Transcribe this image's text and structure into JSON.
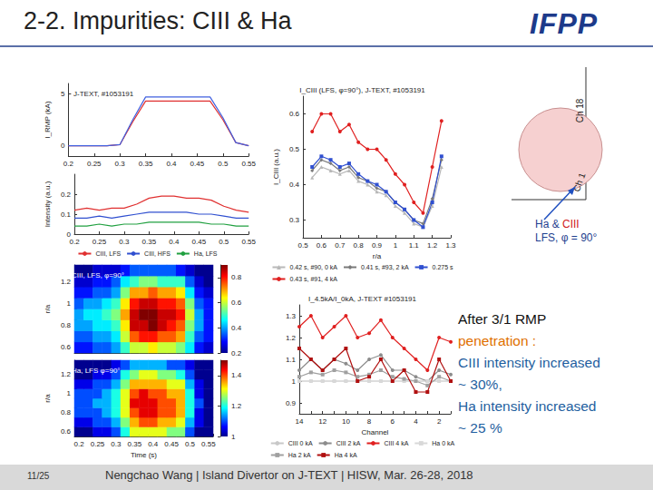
{
  "slide": {
    "title": "2-2. Impurities: CIII & Ha",
    "logo": "IFPP",
    "page": "11/25",
    "footer": "Nengchao Wang | Island Divertor on J-TEXT | HISW, Mar. 26-28, 2018",
    "diagram_labels": [
      "Ch 18",
      "Ch 1"
    ],
    "annotation": [
      [
        {
          "text": "Ha & ",
          "color": "#1f3f8f"
        },
        {
          "text": "CIII",
          "color": "#d02020"
        }
      ],
      [
        {
          "text": "LFS, φ = 90°",
          "color": "#1f3f8f"
        }
      ]
    ],
    "notes": [
      [
        {
          "text": "After 3/1 RMP",
          "color": "#111111"
        }
      ],
      [
        {
          "text": "penetration :",
          "color": "#e07000"
        }
      ],
      [
        {
          "text": "CIII intensity increased",
          "color": "#1f5fa0"
        }
      ],
      [
        {
          "text": "~ 30%,",
          "color": "#1f5fa0"
        }
      ],
      [
        {
          "text": "Ha intensity increased",
          "color": "#1f5fa0"
        }
      ],
      [
        {
          "text": "~ 25 %",
          "color": "#1f5fa0"
        }
      ]
    ]
  },
  "chart_data": [
    {
      "type": "line",
      "title": "J-TEXT, #1053191",
      "y_label": "I_RMP (kA)",
      "marker": "none",
      "grid": false,
      "x": [
        0.2,
        0.225,
        0.25,
        0.275,
        0.3,
        0.325,
        0.35,
        0.375,
        0.4,
        0.425,
        0.45,
        0.475,
        0.5,
        0.525,
        0.55
      ],
      "xlim": [
        0.2,
        0.55
      ],
      "xticks": [
        0.2,
        0.25,
        0.3,
        0.35,
        0.4,
        0.45,
        0.5,
        0.55
      ],
      "ylim": [
        -1,
        6
      ],
      "yticks": [
        0,
        5
      ],
      "series": [
        {
          "color": "#e03030",
          "values": [
            0,
            0,
            0,
            0,
            0.1,
            2.3,
            4.3,
            4.3,
            4.3,
            4.3,
            4.3,
            4.3,
            2.5,
            0.3,
            0
          ]
        },
        {
          "color": "#4060e0",
          "values": [
            0,
            0,
            0,
            0,
            0.1,
            2.5,
            4.7,
            4.7,
            4.7,
            4.7,
            4.7,
            4.7,
            2.7,
            0.3,
            0
          ]
        }
      ]
    },
    {
      "type": "line",
      "y_label": "Intensity (a.u.)",
      "marker": "none",
      "grid": false,
      "legend": "bottom",
      "x": [
        0.2,
        0.225,
        0.25,
        0.275,
        0.3,
        0.325,
        0.35,
        0.375,
        0.4,
        0.425,
        0.45,
        0.475,
        0.5,
        0.525,
        0.55
      ],
      "xlim": [
        0.2,
        0.55
      ],
      "xticks": [
        0.2,
        0.25,
        0.3,
        0.35,
        0.4,
        0.45,
        0.5,
        0.55
      ],
      "ylim": [
        0,
        0.3
      ],
      "yticks": [
        0,
        0.1,
        0.2
      ],
      "series": [
        {
          "name": "CIII, LFS",
          "color": "#e03030",
          "values": [
            0.12,
            0.13,
            0.12,
            0.13,
            0.13,
            0.15,
            0.18,
            0.19,
            0.19,
            0.18,
            0.18,
            0.17,
            0.14,
            0.12,
            0.11
          ]
        },
        {
          "name": "CIII, HFS",
          "color": "#3050d0",
          "values": [
            0.08,
            0.08,
            0.09,
            0.08,
            0.09,
            0.1,
            0.11,
            0.11,
            0.11,
            0.11,
            0.1,
            0.1,
            0.09,
            0.08,
            0.08
          ]
        },
        {
          "name": "Ha, LFS",
          "color": "#20a040",
          "values": [
            0.04,
            0.04,
            0.05,
            0.04,
            0.05,
            0.05,
            0.06,
            0.06,
            0.06,
            0.06,
            0.06,
            0.05,
            0.05,
            0.04,
            0.04
          ]
        }
      ]
    },
    {
      "type": "heatmap",
      "title": "CIII, LFS, φ=90°",
      "y_label": "r/a",
      "tick_labels": "y",
      "categories": [
        "0.2",
        null,
        "0.25",
        null,
        "0.3",
        null,
        "0.35",
        null,
        "0.4",
        null,
        "0.45",
        null,
        "0.5",
        null,
        "0.55"
      ],
      "rows": [
        "0.6",
        null,
        "0.8",
        null,
        "1",
        null,
        "1.2",
        null
      ],
      "cells": [
        [
          0.3,
          0.3,
          0.35,
          0.35,
          0.4,
          0.5,
          0.6,
          0.6,
          0.65,
          0.6,
          0.6,
          0.55,
          0.45,
          0.3,
          0.25
        ],
        [
          0.35,
          0.35,
          0.4,
          0.4,
          0.45,
          0.6,
          0.75,
          0.8,
          0.8,
          0.75,
          0.75,
          0.7,
          0.5,
          0.35,
          0.3
        ],
        [
          0.4,
          0.4,
          0.45,
          0.45,
          0.5,
          0.65,
          0.85,
          0.85,
          0.9,
          0.85,
          0.8,
          0.75,
          0.55,
          0.4,
          0.3
        ],
        [
          0.4,
          0.45,
          0.45,
          0.5,
          0.55,
          0.7,
          0.85,
          0.9,
          0.9,
          0.85,
          0.85,
          0.8,
          0.6,
          0.4,
          0.3
        ],
        [
          0.35,
          0.4,
          0.4,
          0.45,
          0.5,
          0.65,
          0.8,
          0.85,
          0.85,
          0.8,
          0.8,
          0.75,
          0.55,
          0.35,
          0.3
        ],
        [
          0.3,
          0.3,
          0.35,
          0.35,
          0.4,
          0.55,
          0.7,
          0.7,
          0.75,
          0.7,
          0.7,
          0.65,
          0.45,
          0.3,
          0.25
        ],
        [
          0.25,
          0.25,
          0.3,
          0.3,
          0.35,
          0.45,
          0.5,
          0.55,
          0.55,
          0.5,
          0.5,
          0.5,
          0.35,
          0.25,
          0.2
        ],
        [
          0.2,
          0.2,
          0.25,
          0.25,
          0.25,
          0.3,
          0.35,
          0.35,
          0.35,
          0.35,
          0.35,
          0.3,
          0.25,
          0.2,
          0.2
        ]
      ],
      "colorbar": {
        "range": [
          0.2,
          0.9
        ],
        "ticks": [
          0.2,
          0.4,
          0.6,
          0.8
        ]
      }
    },
    {
      "type": "heatmap",
      "title": "Ha, LFS φ=90°",
      "x_label": "Time (s)",
      "y_label": "r/a",
      "categories": [
        "0.2",
        null,
        "0.25",
        null,
        "0.3",
        null,
        "0.35",
        null,
        "0.4",
        null,
        "0.45",
        null,
        "0.5",
        null,
        "0.55"
      ],
      "rows": [
        "0.6",
        null,
        "0.8",
        null,
        "1",
        null,
        "1.2",
        null
      ],
      "cells": [
        [
          1.0,
          1.0,
          1.05,
          1.05,
          1.1,
          1.2,
          1.3,
          1.3,
          1.3,
          1.3,
          1.25,
          1.25,
          1.1,
          1.0,
          1.0
        ],
        [
          1.05,
          1.05,
          1.1,
          1.1,
          1.15,
          1.25,
          1.35,
          1.4,
          1.4,
          1.35,
          1.35,
          1.3,
          1.15,
          1.05,
          1.0
        ],
        [
          1.1,
          1.1,
          1.1,
          1.15,
          1.2,
          1.3,
          1.4,
          1.45,
          1.45,
          1.4,
          1.4,
          1.35,
          1.2,
          1.05,
          1.0
        ],
        [
          1.1,
          1.1,
          1.15,
          1.15,
          1.2,
          1.3,
          1.45,
          1.45,
          1.45,
          1.4,
          1.4,
          1.35,
          1.2,
          1.1,
          1.0
        ],
        [
          1.1,
          1.1,
          1.1,
          1.15,
          1.2,
          1.3,
          1.4,
          1.45,
          1.4,
          1.4,
          1.35,
          1.35,
          1.2,
          1.05,
          1.0
        ],
        [
          1.05,
          1.05,
          1.1,
          1.1,
          1.15,
          1.25,
          1.35,
          1.35,
          1.35,
          1.35,
          1.3,
          1.3,
          1.15,
          1.05,
          1.0
        ],
        [
          1.0,
          1.0,
          1.05,
          1.05,
          1.1,
          1.2,
          1.25,
          1.3,
          1.3,
          1.25,
          1.25,
          1.2,
          1.1,
          1.0,
          1.0
        ],
        [
          1.0,
          1.0,
          1.0,
          1.0,
          1.05,
          1.1,
          1.15,
          1.15,
          1.15,
          1.15,
          1.1,
          1.1,
          1.05,
          1.0,
          1.0
        ]
      ],
      "colorbar": {
        "range": [
          1,
          1.5
        ],
        "ticks": [
          1,
          1.2,
          1.4
        ]
      }
    },
    {
      "type": "line",
      "title": "I_CIII (LFS, φ=90°), J-TEXT, #1053191",
      "x_label": "r/a",
      "y_label": "I_CIII (a.u.)",
      "grid": false,
      "legend": "bottom",
      "x": [
        0.55,
        0.6,
        0.65,
        0.7,
        0.75,
        0.8,
        0.85,
        0.9,
        0.95,
        1.0,
        1.05,
        1.1,
        1.15,
        1.2,
        1.25
      ],
      "xlim": [
        0.5,
        1.3
      ],
      "xticks": [
        0.5,
        0.6,
        0.7,
        0.8,
        0.9,
        1,
        1.1,
        1.2,
        1.3
      ],
      "ylim": [
        0.25,
        0.65
      ],
      "yticks": [
        0.3,
        0.4,
        0.5,
        0.6
      ],
      "series": [
        {
          "name": "0.42 s, #90, 0 kA",
          "color": "#b8b8b8",
          "marker": "triangle",
          "values": [
            0.42,
            0.45,
            0.44,
            0.43,
            0.44,
            0.41,
            0.4,
            0.38,
            0.37,
            0.34,
            0.32,
            0.29,
            0.28,
            0.34,
            0.45
          ]
        },
        {
          "name": "0.41 s, #93, 2 kA",
          "color": "#7a7a7a",
          "marker": "diamond",
          "values": [
            0.44,
            0.47,
            0.46,
            0.44,
            0.45,
            0.42,
            0.41,
            0.39,
            0.38,
            0.35,
            0.33,
            0.3,
            0.29,
            0.36,
            0.47
          ]
        },
        {
          "name": "0.275 s",
          "color": "#3050d0",
          "marker": "square",
          "values": [
            0.45,
            0.48,
            0.47,
            0.45,
            0.46,
            0.43,
            0.41,
            0.4,
            0.38,
            0.35,
            0.33,
            0.3,
            0.28,
            0.35,
            0.48
          ]
        },
        {
          "name": "0.43 s, #91, 4 kA",
          "color": "#e02020",
          "marker": "circle",
          "values": [
            0.55,
            0.6,
            0.6,
            0.55,
            0.57,
            0.52,
            0.5,
            0.5,
            0.47,
            0.43,
            0.4,
            0.35,
            0.32,
            0.45,
            0.58
          ]
        }
      ]
    },
    {
      "type": "line",
      "title": "I_4.5kA/I_0kA, J-TEXT #1053191",
      "x_label": "Channel",
      "grid": false,
      "legend": "bottom",
      "categories": [
        "14",
        null,
        "12",
        null,
        "10",
        null,
        "8",
        null,
        "6",
        null,
        "4",
        null,
        "2",
        null
      ],
      "ylim": [
        0.85,
        1.35
      ],
      "yticks": [
        0.9,
        1,
        1.1,
        1.2,
        1.3
      ],
      "series": [
        {
          "name": "CIII 0 kA",
          "color": "#c8c8c8",
          "marker": "circle",
          "values": [
            1,
            1,
            1,
            1,
            1,
            1,
            1,
            1,
            1,
            1,
            1,
            1,
            1,
            1
          ]
        },
        {
          "name": "CIII 2 kA",
          "color": "#8c8c8c",
          "marker": "circle",
          "values": [
            1.05,
            1.1,
            1.05,
            1.1,
            1.08,
            1.05,
            1.1,
            1.12,
            1.05,
            1.05,
            1.02,
            1.0,
            1.05,
            1.03
          ]
        },
        {
          "name": "CIII 4 kA",
          "color": "#e02020",
          "marker": "circle",
          "values": [
            1.25,
            1.3,
            1.2,
            1.25,
            1.3,
            1.2,
            1.22,
            1.28,
            1.2,
            1.15,
            1.1,
            1.05,
            1.2,
            1.18
          ]
        },
        {
          "name": "Ha 0 kA",
          "color": "#d8d8d8",
          "marker": "square",
          "values": [
            1,
            1,
            1,
            1,
            1,
            1,
            1,
            1,
            1,
            1,
            1,
            1,
            1,
            1
          ]
        },
        {
          "name": "Ha 2 kA",
          "color": "#a0a0a0",
          "marker": "square",
          "values": [
            1.02,
            1.04,
            1.03,
            1.05,
            1.04,
            1.02,
            1.03,
            1.05,
            1.02,
            1.01,
            1.0,
            0.98,
            1.02,
            1.0
          ]
        },
        {
          "name": "Ha 4 kA",
          "color": "#b01010",
          "marker": "square",
          "values": [
            1.15,
            1.1,
            1.05,
            1.1,
            1.15,
            1.0,
            1.02,
            1.1,
            1.0,
            1.05,
            0.95,
            0.95,
            1.1,
            1.0
          ]
        }
      ]
    }
  ]
}
